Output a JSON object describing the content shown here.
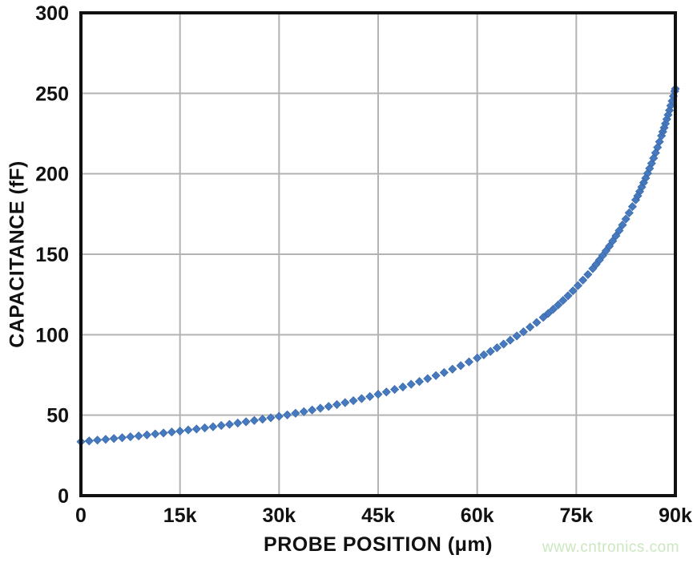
{
  "watermark": {
    "text": "www.cntronics.com",
    "color": "#cbe7c0"
  },
  "chart_data": {
    "type": "scatter",
    "title": "",
    "xlabel": "PROBE POSITION (μm)",
    "ylabel": "CAPACITANCE (fF)",
    "xlim": [
      0,
      90000
    ],
    "ylim": [
      0,
      300
    ],
    "grid": true,
    "legend": "none",
    "marker": "diamond",
    "marker_size": 5,
    "marker_color": "#4679bd",
    "marker_edge_color": "#3a6cae",
    "grid_color": "#b3b3b3",
    "frame_color": "#111111",
    "label_color": "#111111",
    "x_ticks": [
      {
        "value": 0,
        "label": "0"
      },
      {
        "value": 15000,
        "label": "15k"
      },
      {
        "value": 30000,
        "label": "30k"
      },
      {
        "value": 45000,
        "label": "45k"
      },
      {
        "value": 60000,
        "label": "60k"
      },
      {
        "value": 75000,
        "label": "75k"
      },
      {
        "value": 90000,
        "label": "90k"
      }
    ],
    "y_ticks": [
      {
        "value": 0,
        "label": "0"
      },
      {
        "value": 50,
        "label": "50"
      },
      {
        "value": 100,
        "label": "100"
      },
      {
        "value": 150,
        "label": "150"
      },
      {
        "value": 200,
        "label": "200"
      },
      {
        "value": 250,
        "label": "250"
      },
      {
        "value": 300,
        "label": "300"
      }
    ],
    "series": [
      {
        "name": "capacitance-vs-position",
        "points": [
          [
            0,
            33.5
          ],
          [
            1250,
            34.0
          ],
          [
            2500,
            34.5
          ],
          [
            3750,
            35.0
          ],
          [
            5000,
            35.5
          ],
          [
            6250,
            36.0
          ],
          [
            7500,
            36.6
          ],
          [
            8750,
            37.1
          ],
          [
            10000,
            37.7
          ],
          [
            11250,
            38.3
          ],
          [
            12500,
            38.9
          ],
          [
            13750,
            39.5
          ],
          [
            15000,
            40.1
          ],
          [
            16250,
            40.8
          ],
          [
            17500,
            41.4
          ],
          [
            18750,
            42.1
          ],
          [
            20000,
            42.8
          ],
          [
            21250,
            43.6
          ],
          [
            22500,
            44.3
          ],
          [
            23750,
            45.1
          ],
          [
            25000,
            45.9
          ],
          [
            26250,
            46.7
          ],
          [
            27500,
            47.5
          ],
          [
            28750,
            48.4
          ],
          [
            30000,
            49.3
          ],
          [
            31250,
            50.2
          ],
          [
            32500,
            51.2
          ],
          [
            33750,
            52.2
          ],
          [
            35000,
            53.2
          ],
          [
            36250,
            54.3
          ],
          [
            37500,
            55.4
          ],
          [
            38750,
            56.6
          ],
          [
            40000,
            57.8
          ],
          [
            41250,
            59.0
          ],
          [
            42500,
            60.3
          ],
          [
            43750,
            61.6
          ],
          [
            45000,
            63.0
          ],
          [
            46250,
            64.4
          ],
          [
            47500,
            66.0
          ],
          [
            48750,
            67.5
          ],
          [
            50000,
            69.2
          ],
          [
            51250,
            70.9
          ],
          [
            52500,
            72.7
          ],
          [
            53750,
            74.6
          ],
          [
            55000,
            76.5
          ],
          [
            56250,
            78.6
          ],
          [
            57500,
            80.8
          ],
          [
            58750,
            83.1
          ],
          [
            60000,
            85.5
          ],
          [
            61000,
            87.5
          ],
          [
            62000,
            89.6
          ],
          [
            63000,
            91.9
          ],
          [
            64000,
            94.2
          ],
          [
            65000,
            96.6
          ],
          [
            66000,
            99.2
          ],
          [
            67000,
            101.8
          ],
          [
            68000,
            104.7
          ],
          [
            69000,
            107.6
          ],
          [
            70000,
            110.8
          ],
          [
            70750,
            113.2
          ],
          [
            71500,
            115.8
          ],
          [
            72250,
            118.5
          ],
          [
            73000,
            121.3
          ],
          [
            73750,
            124.2
          ],
          [
            74500,
            127.3
          ],
          [
            75250,
            130.5
          ],
          [
            76000,
            133.9
          ],
          [
            76750,
            137.4
          ],
          [
            77500,
            141.1
          ],
          [
            78000,
            143.7
          ],
          [
            78500,
            146.4
          ],
          [
            79000,
            149.2
          ],
          [
            79500,
            152.1
          ],
          [
            80000,
            155.0
          ],
          [
            80500,
            158.2
          ],
          [
            81000,
            161.4
          ],
          [
            81500,
            164.7
          ],
          [
            82000,
            168.2
          ],
          [
            82500,
            171.9
          ],
          [
            83000,
            175.7
          ],
          [
            83500,
            179.6
          ],
          [
            84000,
            183.8
          ],
          [
            84300,
            186.3
          ],
          [
            84600,
            189.0
          ],
          [
            84900,
            191.7
          ],
          [
            85200,
            194.5
          ],
          [
            85500,
            197.3
          ],
          [
            85800,
            200.3
          ],
          [
            86100,
            203.3
          ],
          [
            86400,
            206.4
          ],
          [
            86700,
            209.7
          ],
          [
            87000,
            213.0
          ],
          [
            87300,
            216.4
          ],
          [
            87600,
            219.9
          ],
          [
            87900,
            223.6
          ],
          [
            88100,
            226.1
          ],
          [
            88300,
            228.6
          ],
          [
            88500,
            231.2
          ],
          [
            88700,
            233.9
          ],
          [
            88900,
            236.6
          ],
          [
            89100,
            239.4
          ],
          [
            89300,
            242.3
          ],
          [
            89500,
            245.2
          ],
          [
            89700,
            248.2
          ],
          [
            89900,
            251.3
          ],
          [
            90000,
            252.8
          ]
        ]
      }
    ]
  }
}
